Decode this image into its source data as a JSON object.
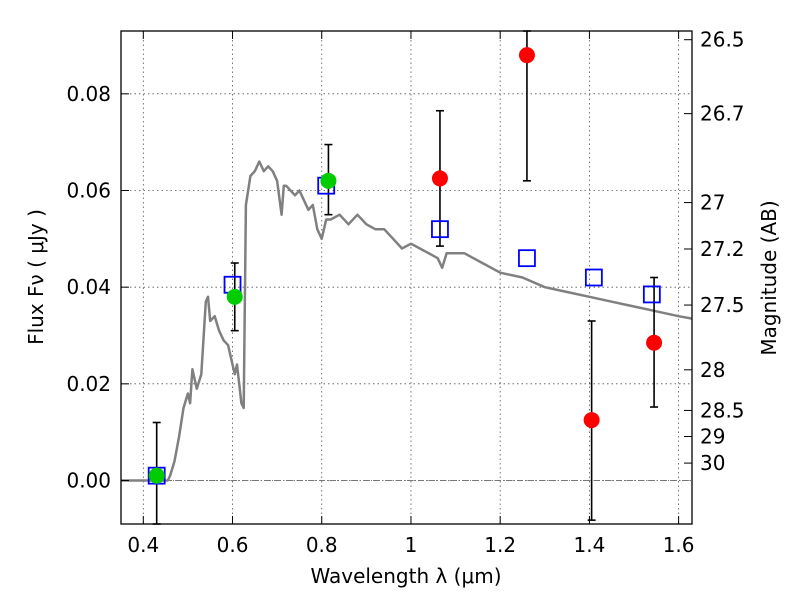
{
  "chart_data": {
    "type": "scatter",
    "title": "",
    "xlabel": "Wavelength  λ (μm)",
    "ylabel": "Flux  Fν  ( μJy )",
    "y2label": "Magnitude (AB)",
    "xlim": [
      0.35,
      1.63
    ],
    "ylim": [
      -0.009,
      0.093
    ],
    "grid": true,
    "x_ticks": [
      0.4,
      0.6,
      0.8,
      1.0,
      1.2,
      1.4,
      1.6
    ],
    "x_tick_labels": [
      "0.4",
      "0.6",
      "0.8",
      "1",
      "1.2",
      "1.4",
      "1.6"
    ],
    "y_ticks": [
      0.0,
      0.02,
      0.04,
      0.06,
      0.08
    ],
    "y_tick_labels": [
      "0.00",
      "0.02",
      "0.04",
      "0.06",
      "0.08"
    ],
    "mag_ticks": [
      {
        "label": "26.5",
        "flux": 0.0912
      },
      {
        "label": "26.7",
        "flux": 0.0759
      },
      {
        "label": "27",
        "flux": 0.0575
      },
      {
        "label": "27.2",
        "flux": 0.0479
      },
      {
        "label": "27.5",
        "flux": 0.0363
      },
      {
        "label": "28",
        "flux": 0.0229
      },
      {
        "label": "28.5",
        "flux": 0.0145
      },
      {
        "label": "29",
        "flux": 0.0091
      },
      {
        "label": "30",
        "flux": 0.0036
      }
    ],
    "series": [
      {
        "role": "model-sed",
        "color": "#808080",
        "points": [
          [
            0.35,
            0.0
          ],
          [
            0.44,
            0.0
          ],
          [
            0.455,
            0.0
          ],
          [
            0.46,
            0.001
          ],
          [
            0.47,
            0.004
          ],
          [
            0.48,
            0.009
          ],
          [
            0.49,
            0.015
          ],
          [
            0.5,
            0.018
          ],
          [
            0.505,
            0.016
          ],
          [
            0.51,
            0.023
          ],
          [
            0.52,
            0.019
          ],
          [
            0.53,
            0.022
          ],
          [
            0.54,
            0.037
          ],
          [
            0.545,
            0.038
          ],
          [
            0.55,
            0.033
          ],
          [
            0.56,
            0.034
          ],
          [
            0.57,
            0.031
          ],
          [
            0.58,
            0.029
          ],
          [
            0.59,
            0.028
          ],
          [
            0.6,
            0.024
          ],
          [
            0.605,
            0.022
          ],
          [
            0.61,
            0.024
          ],
          [
            0.62,
            0.016
          ],
          [
            0.625,
            0.015
          ],
          [
            0.63,
            0.057
          ],
          [
            0.64,
            0.063
          ],
          [
            0.65,
            0.064
          ],
          [
            0.66,
            0.066
          ],
          [
            0.67,
            0.064
          ],
          [
            0.68,
            0.065
          ],
          [
            0.69,
            0.064
          ],
          [
            0.7,
            0.062
          ],
          [
            0.71,
            0.055
          ],
          [
            0.715,
            0.061
          ],
          [
            0.72,
            0.061
          ],
          [
            0.73,
            0.06
          ],
          [
            0.74,
            0.059
          ],
          [
            0.75,
            0.06
          ],
          [
            0.76,
            0.058
          ],
          [
            0.77,
            0.056
          ],
          [
            0.78,
            0.057
          ],
          [
            0.79,
            0.052
          ],
          [
            0.8,
            0.05
          ],
          [
            0.81,
            0.054
          ],
          [
            0.82,
            0.054
          ],
          [
            0.84,
            0.055
          ],
          [
            0.86,
            0.053
          ],
          [
            0.88,
            0.055
          ],
          [
            0.9,
            0.053
          ],
          [
            0.92,
            0.052
          ],
          [
            0.94,
            0.052
          ],
          [
            0.96,
            0.05
          ],
          [
            0.98,
            0.048
          ],
          [
            1.0,
            0.049
          ],
          [
            1.02,
            0.048
          ],
          [
            1.04,
            0.047
          ],
          [
            1.06,
            0.046
          ],
          [
            1.07,
            0.044
          ],
          [
            1.08,
            0.047
          ],
          [
            1.1,
            0.047
          ],
          [
            1.12,
            0.047
          ],
          [
            1.14,
            0.046
          ],
          [
            1.16,
            0.045
          ],
          [
            1.18,
            0.044
          ],
          [
            1.2,
            0.043
          ],
          [
            1.25,
            0.042
          ],
          [
            1.3,
            0.04
          ],
          [
            1.35,
            0.039
          ],
          [
            1.4,
            0.038
          ],
          [
            1.45,
            0.037
          ],
          [
            1.5,
            0.036
          ],
          [
            1.55,
            0.035
          ],
          [
            1.6,
            0.034
          ],
          [
            1.63,
            0.0335
          ]
        ]
      },
      {
        "role": "model-band-flux",
        "marker": "open-square",
        "color": "#0000ff",
        "points": [
          [
            0.43,
            0.001
          ],
          [
            0.6,
            0.0405
          ],
          [
            0.81,
            0.061
          ],
          [
            1.065,
            0.052
          ],
          [
            1.26,
            0.046
          ],
          [
            1.41,
            0.042
          ],
          [
            1.54,
            0.0385
          ]
        ]
      },
      {
        "role": "detected",
        "marker": "filled-circle",
        "color": "#00cc00",
        "points": [
          [
            0.43,
            0.001
          ],
          [
            0.605,
            0.038
          ],
          [
            0.815,
            0.062
          ]
        ]
      },
      {
        "role": "upper-limit",
        "marker": "filled-circle",
        "color": "#ff0000",
        "points": [
          [
            1.065,
            0.0625
          ],
          [
            1.26,
            0.088
          ],
          [
            1.405,
            0.0125
          ],
          [
            1.545,
            0.0285
          ]
        ]
      }
    ],
    "error_bars": [
      {
        "x": 0.43,
        "low": -0.009,
        "high": 0.012
      },
      {
        "x": 0.605,
        "low": 0.031,
        "high": 0.045
      },
      {
        "x": 0.815,
        "low": 0.055,
        "high": 0.0695
      },
      {
        "x": 1.065,
        "low": 0.0485,
        "high": 0.0765
      },
      {
        "x": 1.26,
        "low": 0.062,
        "high": 0.093
      },
      {
        "x": 1.405,
        "low": -0.0082,
        "high": 0.033
      },
      {
        "x": 1.545,
        "low": 0.0152,
        "high": 0.042
      }
    ],
    "zero_line": 0.0
  }
}
